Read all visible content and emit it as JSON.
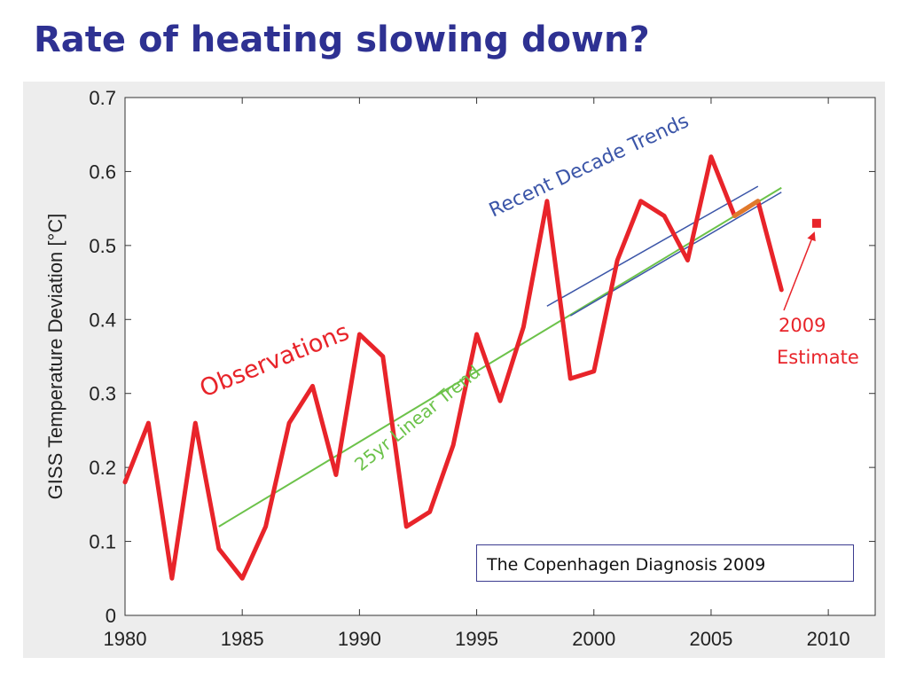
{
  "slide": {
    "title": "Rate of heating slowing down?"
  },
  "credit": {
    "text": "The Copenhagen Diagnosis 2009"
  },
  "colors": {
    "title": "#2e3192",
    "observations": "#e8242a",
    "linear_trend": "#6cc24a",
    "decade_trends": "#3b55a8",
    "orange_segment": "#e07a2a",
    "panel_bg": "#ededed"
  },
  "chart_data": {
    "type": "line",
    "xlabel": "",
    "ylabel": "GISS Temperature Deviation [°C]",
    "xlim": [
      1980,
      2012
    ],
    "ylim": [
      0,
      0.7
    ],
    "x_ticks": [
      1980,
      1985,
      1990,
      1995,
      2000,
      2005,
      2010
    ],
    "y_ticks": [
      0,
      0.1,
      0.2,
      0.3,
      0.4,
      0.5,
      0.6,
      0.7
    ],
    "y_tick_labels": [
      "0",
      "0.1",
      "0.2",
      "0.3",
      "0.4",
      "0.5",
      "0.6",
      "0.7"
    ],
    "grid": false,
    "series": [
      {
        "name": "Observations",
        "color": "#e8242a",
        "x": [
          1980,
          1981,
          1982,
          1983,
          1984,
          1985,
          1986,
          1987,
          1988,
          1989,
          1990,
          1991,
          1992,
          1993,
          1994,
          1995,
          1996,
          1997,
          1998,
          1999,
          2000,
          2001,
          2002,
          2003,
          2004,
          2005,
          2006,
          2007,
          2008
        ],
        "y": [
          0.18,
          0.26,
          0.05,
          0.26,
          0.09,
          0.05,
          0.12,
          0.26,
          0.31,
          0.19,
          0.38,
          0.35,
          0.12,
          0.14,
          0.23,
          0.38,
          0.29,
          0.39,
          0.56,
          0.32,
          0.33,
          0.48,
          0.56,
          0.54,
          0.48,
          0.62,
          0.54,
          0.56,
          0.44
        ]
      },
      {
        "name": "25yr Linear Trend",
        "color": "#6cc24a",
        "x": [
          1984,
          2008
        ],
        "y": [
          0.12,
          0.578
        ]
      },
      {
        "name": "Recent Decade Trends",
        "color": "#3b55a8",
        "x": [
          1998,
          2007
        ],
        "y": [
          0.418,
          0.58
        ]
      },
      {
        "name": "",
        "color": "#3b55a8",
        "x": [
          1999,
          2008
        ],
        "y": [
          0.405,
          0.572
        ]
      }
    ],
    "highlight_segment": {
      "color": "#e07a2a",
      "x": [
        2006,
        2007
      ],
      "y": [
        0.54,
        0.56
      ]
    },
    "estimate_point": {
      "x": 2009.5,
      "y": 0.53
    },
    "annotations": {
      "observations_label": "Observations",
      "trend_label": "25yr Linear Trend",
      "decade_label": "Recent Decade Trends",
      "estimate_line1": "2009",
      "estimate_line2": "Estimate"
    }
  }
}
